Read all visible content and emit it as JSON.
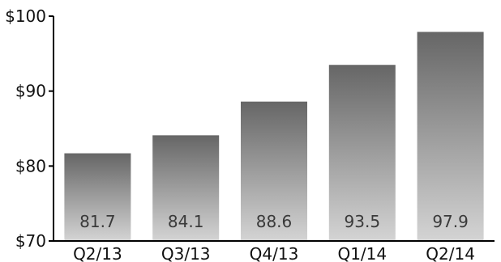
{
  "chart_data": {
    "type": "bar",
    "categories": [
      "Q2/13",
      "Q3/13",
      "Q4/13",
      "Q1/14",
      "Q2/14"
    ],
    "values": [
      81.7,
      84.1,
      88.6,
      93.5,
      97.9
    ],
    "data_labels": [
      "81.7",
      "84.1",
      "88.6",
      "93.5",
      "97.9"
    ],
    "y_ticks": [
      {
        "value": 70,
        "label": "$70"
      },
      {
        "value": 80,
        "label": "$80"
      },
      {
        "value": 90,
        "label": "$90"
      },
      {
        "value": 100,
        "label": "$100"
      }
    ],
    "ylim": [
      70,
      100
    ],
    "grid": false,
    "legend": "none",
    "colors": {
      "bar_top": "#666666",
      "bar_bottom": "#d4d4d4",
      "axis": "#000000"
    }
  }
}
